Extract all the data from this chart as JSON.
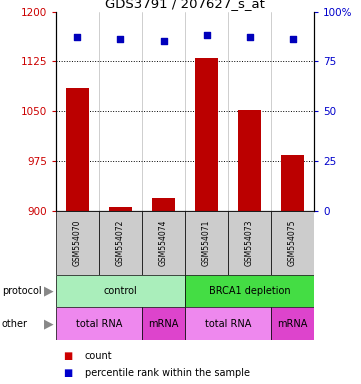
{
  "title": "GDS3791 / 207627_s_at",
  "samples": [
    "GSM554070",
    "GSM554072",
    "GSM554074",
    "GSM554071",
    "GSM554073",
    "GSM554075"
  ],
  "counts": [
    1085,
    907,
    920,
    1130,
    1052,
    985
  ],
  "percentile_ranks": [
    87,
    86,
    85,
    88,
    87,
    86
  ],
  "ylim_left": [
    900,
    1200
  ],
  "ylim_right": [
    0,
    100
  ],
  "yticks_left": [
    900,
    975,
    1050,
    1125,
    1200
  ],
  "yticks_right": [
    0,
    25,
    50,
    75,
    100
  ],
  "bar_color": "#bb0000",
  "dot_color": "#0000bb",
  "protocol_labels": [
    {
      "text": "control",
      "start": 0,
      "end": 3,
      "color": "#aaeebb"
    },
    {
      "text": "BRCA1 depletion",
      "start": 3,
      "end": 6,
      "color": "#44dd44"
    }
  ],
  "other_labels": [
    {
      "text": "total RNA",
      "start": 0,
      "end": 2,
      "color": "#ee88ee"
    },
    {
      "text": "mRNA",
      "start": 2,
      "end": 3,
      "color": "#dd44cc"
    },
    {
      "text": "total RNA",
      "start": 3,
      "end": 5,
      "color": "#ee88ee"
    },
    {
      "text": "mRNA",
      "start": 5,
      "end": 6,
      "color": "#dd44cc"
    }
  ],
  "left_axis_color": "#cc0000",
  "right_axis_color": "#0000cc",
  "title_color": "#000000",
  "sample_box_color": "#cccccc",
  "legend_count_color": "#cc0000",
  "legend_pct_color": "#0000cc",
  "bar_width": 0.55
}
